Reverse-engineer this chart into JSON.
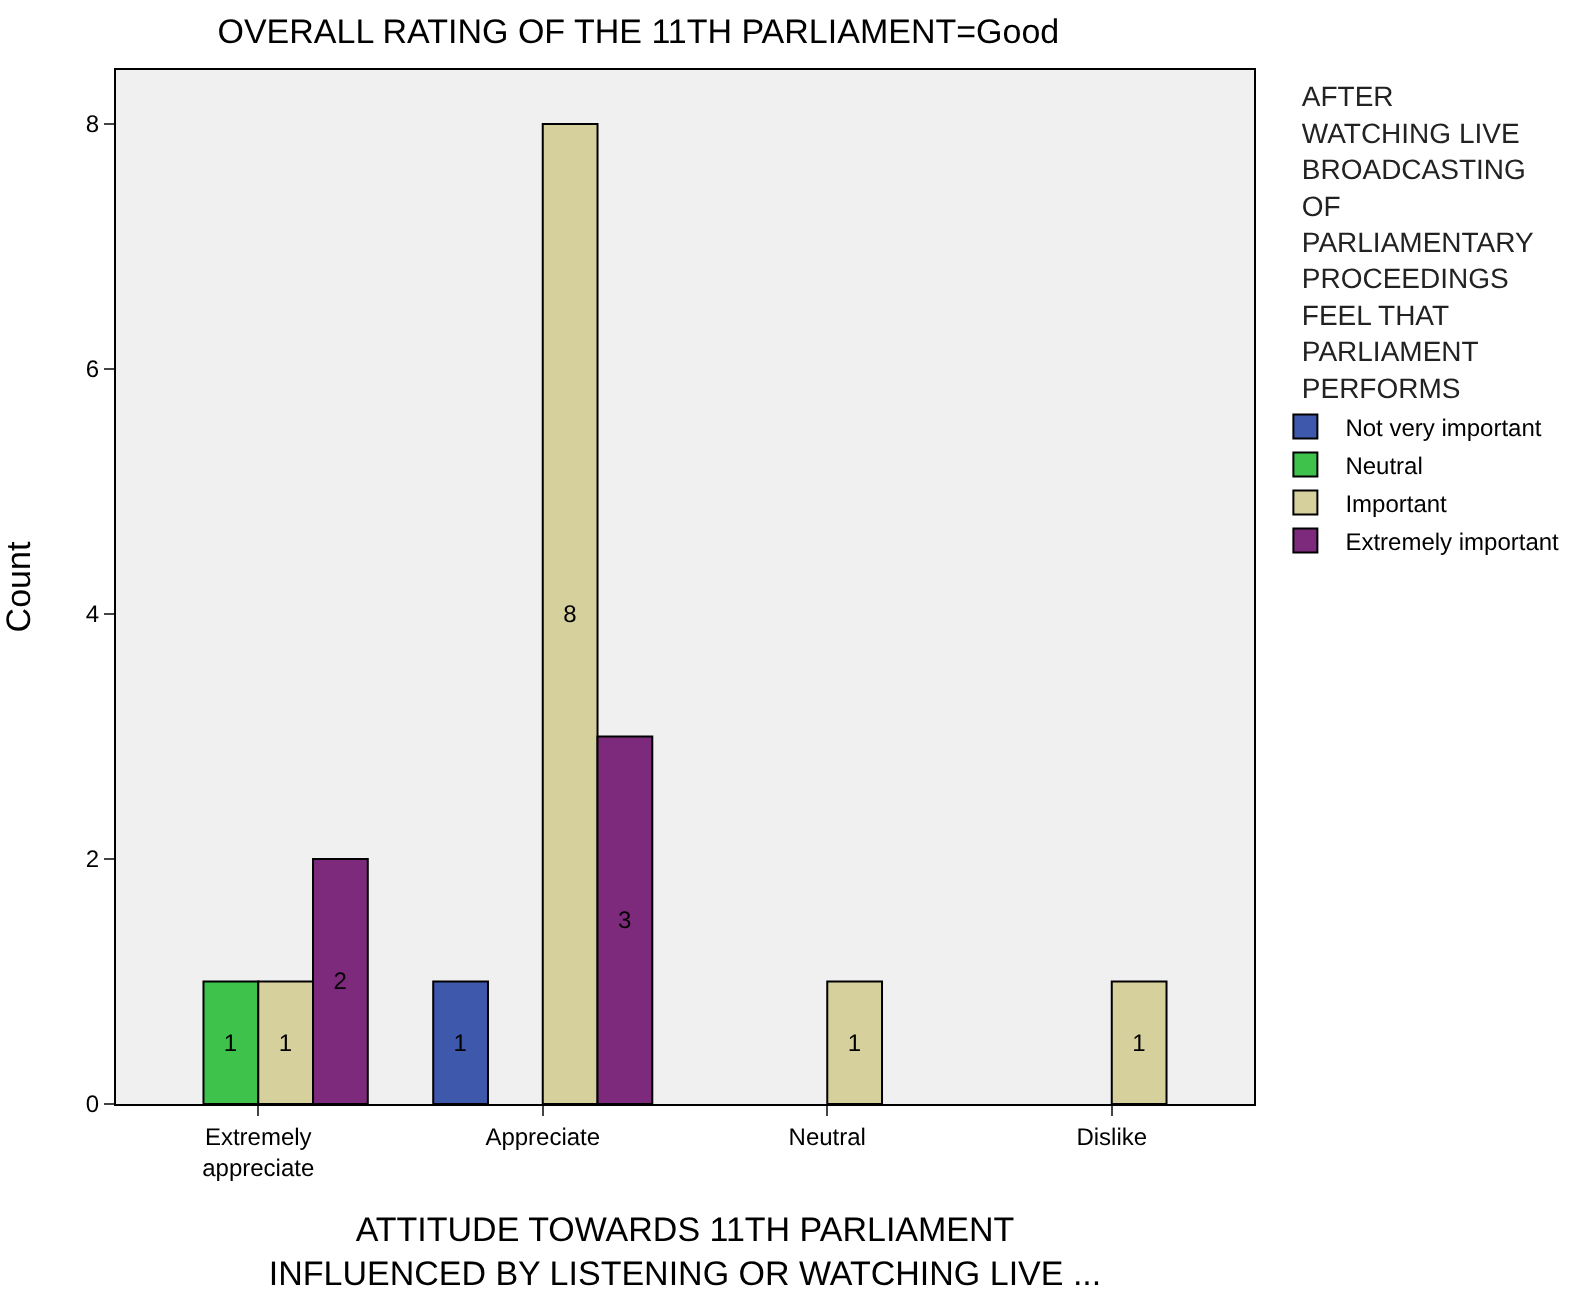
{
  "chart_data": {
    "type": "bar",
    "title": "OVERALL RATING OF THE 11TH PARLIAMENT=Good",
    "xlabel": "ATTITUDE TOWARDS 11TH PARLIAMENT\nINFLUENCED BY LISTENING OR WATCHING LIVE ...",
    "ylabel": "Count",
    "legend_title": "AFTER\nWATCHING LIVE\nBROADCASTING\nOF\nPARLIAMENTARY\nPROCEEDINGS\nFEEL THAT\nPARLIAMENT\nPERFORMS",
    "categories": [
      "Extremely\nappreciate",
      "Appreciate",
      "Neutral",
      "Dislike"
    ],
    "series": [
      {
        "name": "Not very important",
        "color": "#3e58ac",
        "values": [
          null,
          1,
          null,
          null
        ]
      },
      {
        "name": "Neutral",
        "color": "#3ec24c",
        "values": [
          1,
          null,
          null,
          null
        ]
      },
      {
        "name": "Important",
        "color": "#d6d09c",
        "values": [
          1,
          8,
          1,
          1
        ]
      },
      {
        "name": "Extremely important",
        "color": "#7d2a7c",
        "values": [
          2,
          3,
          null,
          null
        ]
      }
    ],
    "ylim": [
      0,
      8.44
    ],
    "yticks": [
      0,
      2,
      4,
      6,
      8
    ],
    "grid": false,
    "legend": "right",
    "data_labels": true
  }
}
